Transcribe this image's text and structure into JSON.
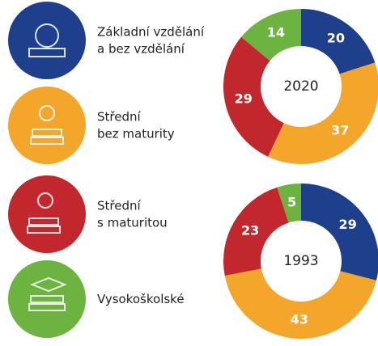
{
  "legend": {
    "items": [
      {
        "label": "Základní vzdělání\na bez vzdělání",
        "color": "#1e3f8c"
      },
      {
        "label": "Střední\nbez maturity",
        "color": "#f4a62a"
      },
      {
        "label": "Střední\ns maturitou",
        "color": "#c1272d"
      },
      {
        "label": "Vysokoškolské",
        "color": "#6cb33f"
      }
    ]
  },
  "chart_data": [
    {
      "type": "donut",
      "center_label": "2020",
      "values": [
        20,
        37,
        29,
        14
      ]
    },
    {
      "type": "donut",
      "center_label": "1993",
      "values": [
        29,
        43,
        23,
        5
      ]
    }
  ]
}
